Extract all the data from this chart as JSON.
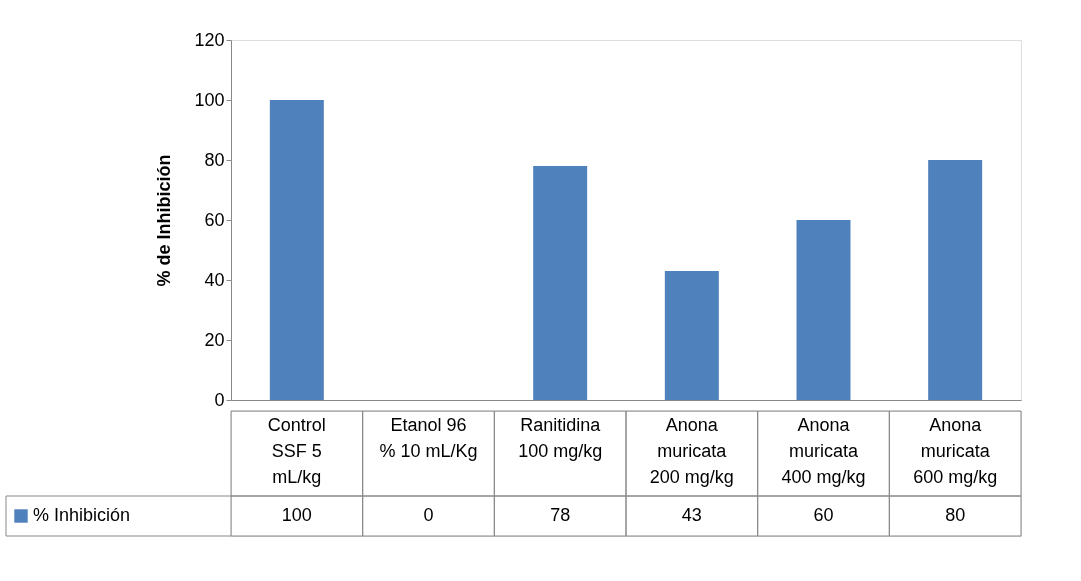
{
  "chart_data": {
    "type": "bar",
    "ylabel": "% de Inhibición",
    "categories": [
      "Control SSF 5 mL/kg",
      "Etanol 96 % 10 mL/Kg",
      "Ranitidina 100 mg/kg",
      "Anona muricata 200 mg/kg",
      "Anona muricata 400 mg/kg",
      "Anona muricata 600 mg/kg"
    ],
    "series": [
      {
        "name": "% Inhibición",
        "color": "#4f81bd",
        "values": [
          100,
          0,
          78,
          43,
          60,
          80
        ]
      }
    ],
    "ylim": [
      0,
      120
    ],
    "yticks": [
      0,
      20,
      40,
      60,
      80,
      100,
      120
    ],
    "grid": false,
    "legend": "bottom left",
    "data_labels": true
  }
}
